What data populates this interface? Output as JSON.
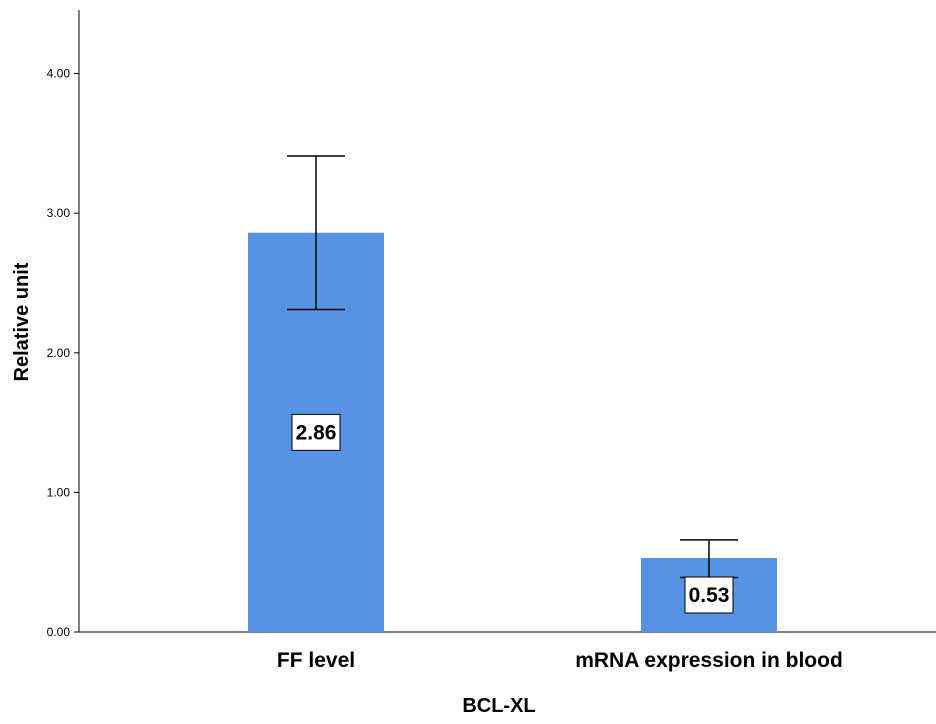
{
  "chart_data": {
    "type": "bar",
    "categories": [
      "FF level",
      "mRNA expression in blood"
    ],
    "values": [
      2.86,
      0.53
    ],
    "error_bars": [
      {
        "low": 2.31,
        "high": 3.41
      },
      {
        "low": 0.39,
        "high": 0.66
      }
    ],
    "data_labels": [
      "2.86",
      "0.53"
    ],
    "xlabel": "BCL-XL",
    "ylabel": "Relative unit",
    "ylim": [
      0,
      4.4
    ],
    "yticks": [
      0,
      1,
      2,
      3,
      4
    ],
    "ytick_labels": [
      "0.00",
      "1.00",
      "2.00",
      "3.00",
      "4.00"
    ],
    "grid": false,
    "legend": "none",
    "bar_color": "#5694e3",
    "axis_color": "#000000"
  }
}
